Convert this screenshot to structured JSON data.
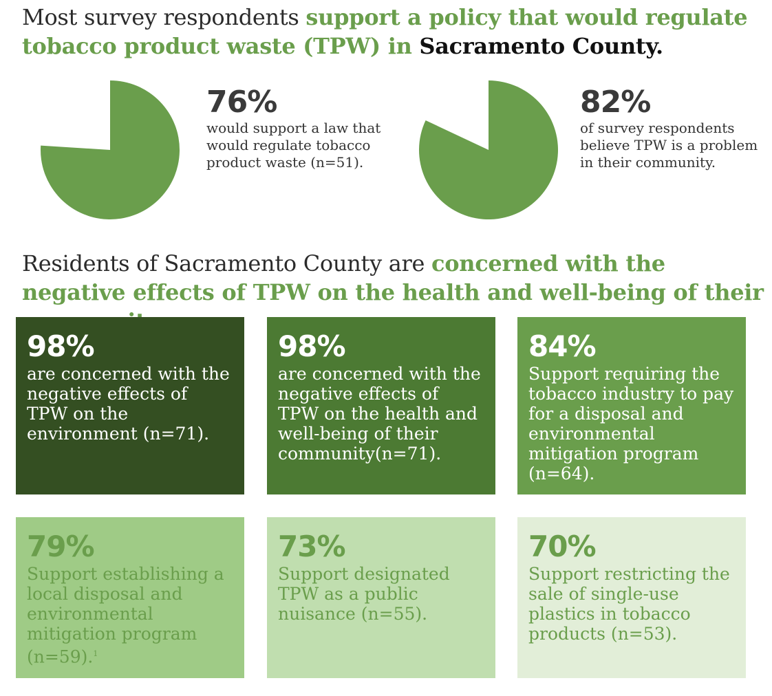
{
  "headline_1": {
    "part1": "Most survey respondents ",
    "part2": "support a policy that would regulate tobacco product waste (TPW) in ",
    "part3": "Sacramento County."
  },
  "headline_2": {
    "part1": "Residents of Sacramento County are ",
    "part2": "concerned with the negative effects of TPW on the health and well-being of their community",
    "part3": "."
  },
  "stats": [
    {
      "percent": "76%",
      "text": "would support a law that would regulate tobacco product waste (n=51)."
    },
    {
      "percent": "82%",
      "text": "of survey respondents believe TPW is a problem in their community."
    }
  ],
  "cards": [
    {
      "percent": "98%",
      "text": "are concerned with the negative effects of TPW on the environment (n=71).",
      "color": "#344f22"
    },
    {
      "percent": "98%",
      "text": "are concerned with the negative effects of TPW on the health and well-being of their community(n=71).",
      "color": "#4c7a33"
    },
    {
      "percent": "84%",
      "text": "Support requiring the tobacco industry to pay for a disposal and environmental mitigation program (n=64).",
      "color": "#6a9e4c"
    },
    {
      "percent": "79%",
      "text": "Support establishing a local disposal and environmental mitigation program (n=59).",
      "footnote": "1",
      "color": "#9fcb86"
    },
    {
      "percent": "73%",
      "text": "Support designated TPW as a public nuisance (n=55).",
      "color": "#c0deaf"
    },
    {
      "percent": "70%",
      "text": "Support restricting the sale of single-use plastics in tobacco products (n=53).",
      "color": "#e2eed8"
    }
  ],
  "chart_data": [
    {
      "type": "pie",
      "categories": [
        "would support a law",
        ""
      ],
      "values": [
        76,
        24
      ],
      "colors": [
        "#6a9e4c",
        "#ffffff"
      ]
    },
    {
      "type": "pie",
      "categories": [
        "believe TPW is a problem",
        ""
      ],
      "values": [
        82,
        18
      ],
      "colors": [
        "#6a9e4c",
        "#ffffff"
      ]
    }
  ],
  "colors": {
    "accent": "#6a9e4c",
    "text": "#2b2b2b"
  }
}
